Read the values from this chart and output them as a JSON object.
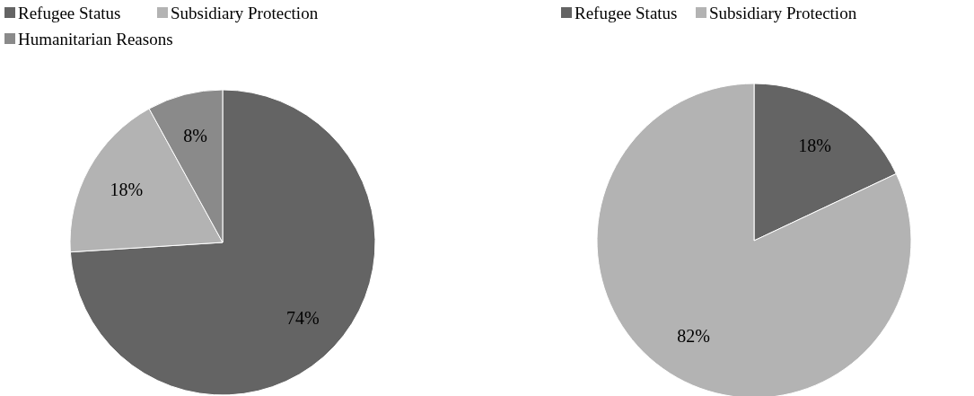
{
  "chart_data": [
    {
      "type": "pie",
      "categories": [
        "Refugee Status",
        "Subsidiary Protection",
        "Humanitarian Reasons"
      ],
      "values": [
        74,
        18,
        8
      ],
      "colors": [
        "#646464",
        "#b3b3b3",
        "#8a8a8a"
      ],
      "value_labels": [
        "74%",
        "18%",
        "8%"
      ],
      "legend": "top"
    },
    {
      "type": "pie",
      "categories": [
        "Refugee Status",
        "Subsidiary Protection"
      ],
      "values": [
        18,
        82
      ],
      "colors": [
        "#646464",
        "#b3b3b3"
      ],
      "value_labels": [
        "18%",
        "82%"
      ],
      "legend": "top"
    }
  ]
}
